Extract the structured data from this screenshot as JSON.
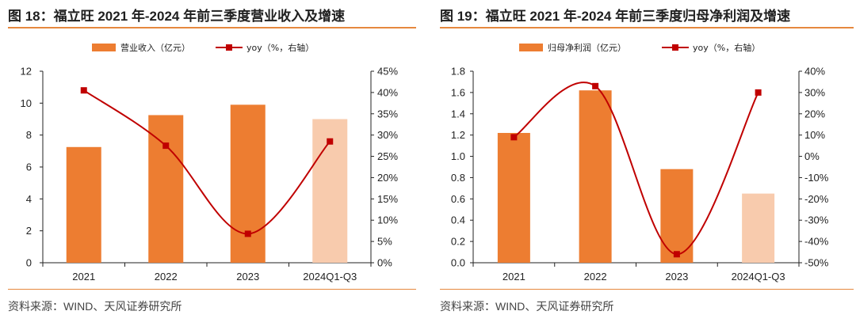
{
  "source_left": "资料来源：WIND、天风证券研究所",
  "source_right": "资料来源：WIND、天风证券研究所",
  "colors": {
    "bar": "#ed7d31",
    "bar_light": "#f8cbad",
    "line": "#c00000",
    "rule": "#e6883e"
  },
  "chart_data": [
    {
      "type": "bar",
      "title": "图 18：福立旺 2021 年-2024 年前三季度营业收入及增速",
      "categories": [
        "2021",
        "2022",
        "2023",
        "2024Q1-Q3"
      ],
      "series": [
        {
          "name": "营业收入（亿元）",
          "type": "bar",
          "axis": "left",
          "values": [
            7.25,
            9.25,
            9.9,
            9.0
          ]
        },
        {
          "name": "yoy（%，右轴）",
          "type": "line",
          "axis": "right",
          "values": [
            40.5,
            27.5,
            6.8,
            28.5
          ]
        }
      ],
      "left_axis": {
        "min": 0,
        "max": 12,
        "step": 2,
        "ticks": [
          "0",
          "2",
          "4",
          "6",
          "8",
          "10",
          "12"
        ]
      },
      "right_axis": {
        "min": 0,
        "max": 45,
        "step": 5,
        "ticks": [
          "0%",
          "5%",
          "10%",
          "15%",
          "20%",
          "25%",
          "30%",
          "35%",
          "40%",
          "45%"
        ]
      },
      "highlight_last_bar": true
    },
    {
      "type": "bar",
      "title": "图 19：福立旺 2021 年-2024 年前三季度归母净利润及增速",
      "categories": [
        "2021",
        "2022",
        "2023",
        "2024Q1-Q3"
      ],
      "series": [
        {
          "name": "归母净利润（亿元）",
          "type": "bar",
          "axis": "left",
          "values": [
            1.22,
            1.62,
            0.88,
            0.65
          ]
        },
        {
          "name": "yoy（%，右轴）",
          "type": "line",
          "axis": "right",
          "values": [
            9,
            33,
            -46,
            30
          ]
        }
      ],
      "left_axis": {
        "min": 0,
        "max": 1.8,
        "step": 0.2,
        "ticks": [
          "0.0",
          "0.2",
          "0.4",
          "0.6",
          "0.8",
          "1.0",
          "1.2",
          "1.4",
          "1.6",
          "1.8"
        ]
      },
      "right_axis": {
        "min": -50,
        "max": 40,
        "step": 10,
        "ticks": [
          "-50%",
          "-40%",
          "-30%",
          "-20%",
          "-10%",
          "0%",
          "10%",
          "20%",
          "30%",
          "40%"
        ]
      },
      "highlight_last_bar": true
    }
  ]
}
